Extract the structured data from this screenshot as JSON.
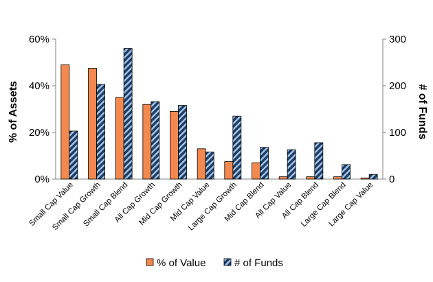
{
  "chart_data": {
    "type": "bar",
    "categories": [
      "Small Cap Value",
      "Small Cap Growth",
      "Small Cap Blend",
      "All Cap Growth",
      "Mid Cap Growth",
      "Mid Cap Value",
      "Large Cap Growth",
      "Mid Cap Blend",
      "All Cap Value",
      "All Cap Blend",
      "Large Cap Blend",
      "Large Cap Value"
    ],
    "series": [
      {
        "name": "% of Value",
        "axis": "left",
        "unit": "percent",
        "color": "#F4894F",
        "values": [
          49,
          47.5,
          35,
          32,
          29,
          13,
          7.5,
          7,
          1,
          1,
          1,
          0.5
        ]
      },
      {
        "name": "# of Funds",
        "axis": "right",
        "unit": "count",
        "color": "#1F3A60",
        "pattern": "diagonal-stripes",
        "stripe_color": "#9DC3E6",
        "values": [
          103,
          203,
          280,
          166,
          158,
          58,
          135,
          68,
          63,
          78,
          31,
          10
        ]
      }
    ],
    "ylabel": "% of Assets",
    "y2label": "# of Funds",
    "ylim": [
      0,
      60
    ],
    "y2lim": [
      0,
      300
    ],
    "yticks": [
      "0%",
      "20%",
      "40%",
      "60%"
    ],
    "y2ticks": [
      "0",
      "100",
      "200",
      "300"
    ],
    "grid": false,
    "legend_position": "bottom",
    "legend": [
      "% of Value",
      "# of Funds"
    ]
  }
}
